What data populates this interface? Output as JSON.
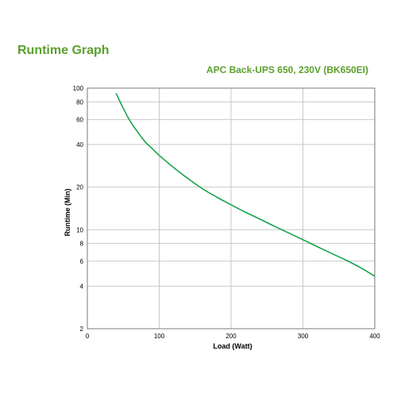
{
  "header": {
    "title": "Runtime Graph",
    "model": "APC Back-UPS 650, 230V (BK650EI)"
  },
  "colors": {
    "brand": "#5aa02c",
    "curve": "#16a34a",
    "grid": "#c8c8c8"
  },
  "chart_data": {
    "type": "line",
    "title": "",
    "xlabel": "Load (Watt)",
    "ylabel": "Runtime (Min)",
    "xlim": [
      0,
      400
    ],
    "ylim": [
      2,
      100
    ],
    "yscale": "log",
    "grid": true,
    "xticks": [
      0,
      100,
      200,
      300,
      400
    ],
    "yticks": [
      2,
      4,
      6,
      8,
      10,
      20,
      40,
      60,
      80,
      100
    ],
    "series": [
      {
        "x": [
          40,
          50,
          60,
          70,
          80,
          90,
          100,
          120,
          140,
          160,
          180,
          200,
          220,
          240,
          260,
          280,
          300,
          320,
          340,
          360,
          380,
          400
        ],
        "y": [
          92,
          72,
          58,
          49,
          42,
          37.5,
          33.5,
          27.5,
          23,
          19.5,
          17,
          15,
          13.3,
          11.9,
          10.6,
          9.5,
          8.5,
          7.6,
          6.8,
          6.1,
          5.4,
          4.7
        ]
      }
    ]
  }
}
